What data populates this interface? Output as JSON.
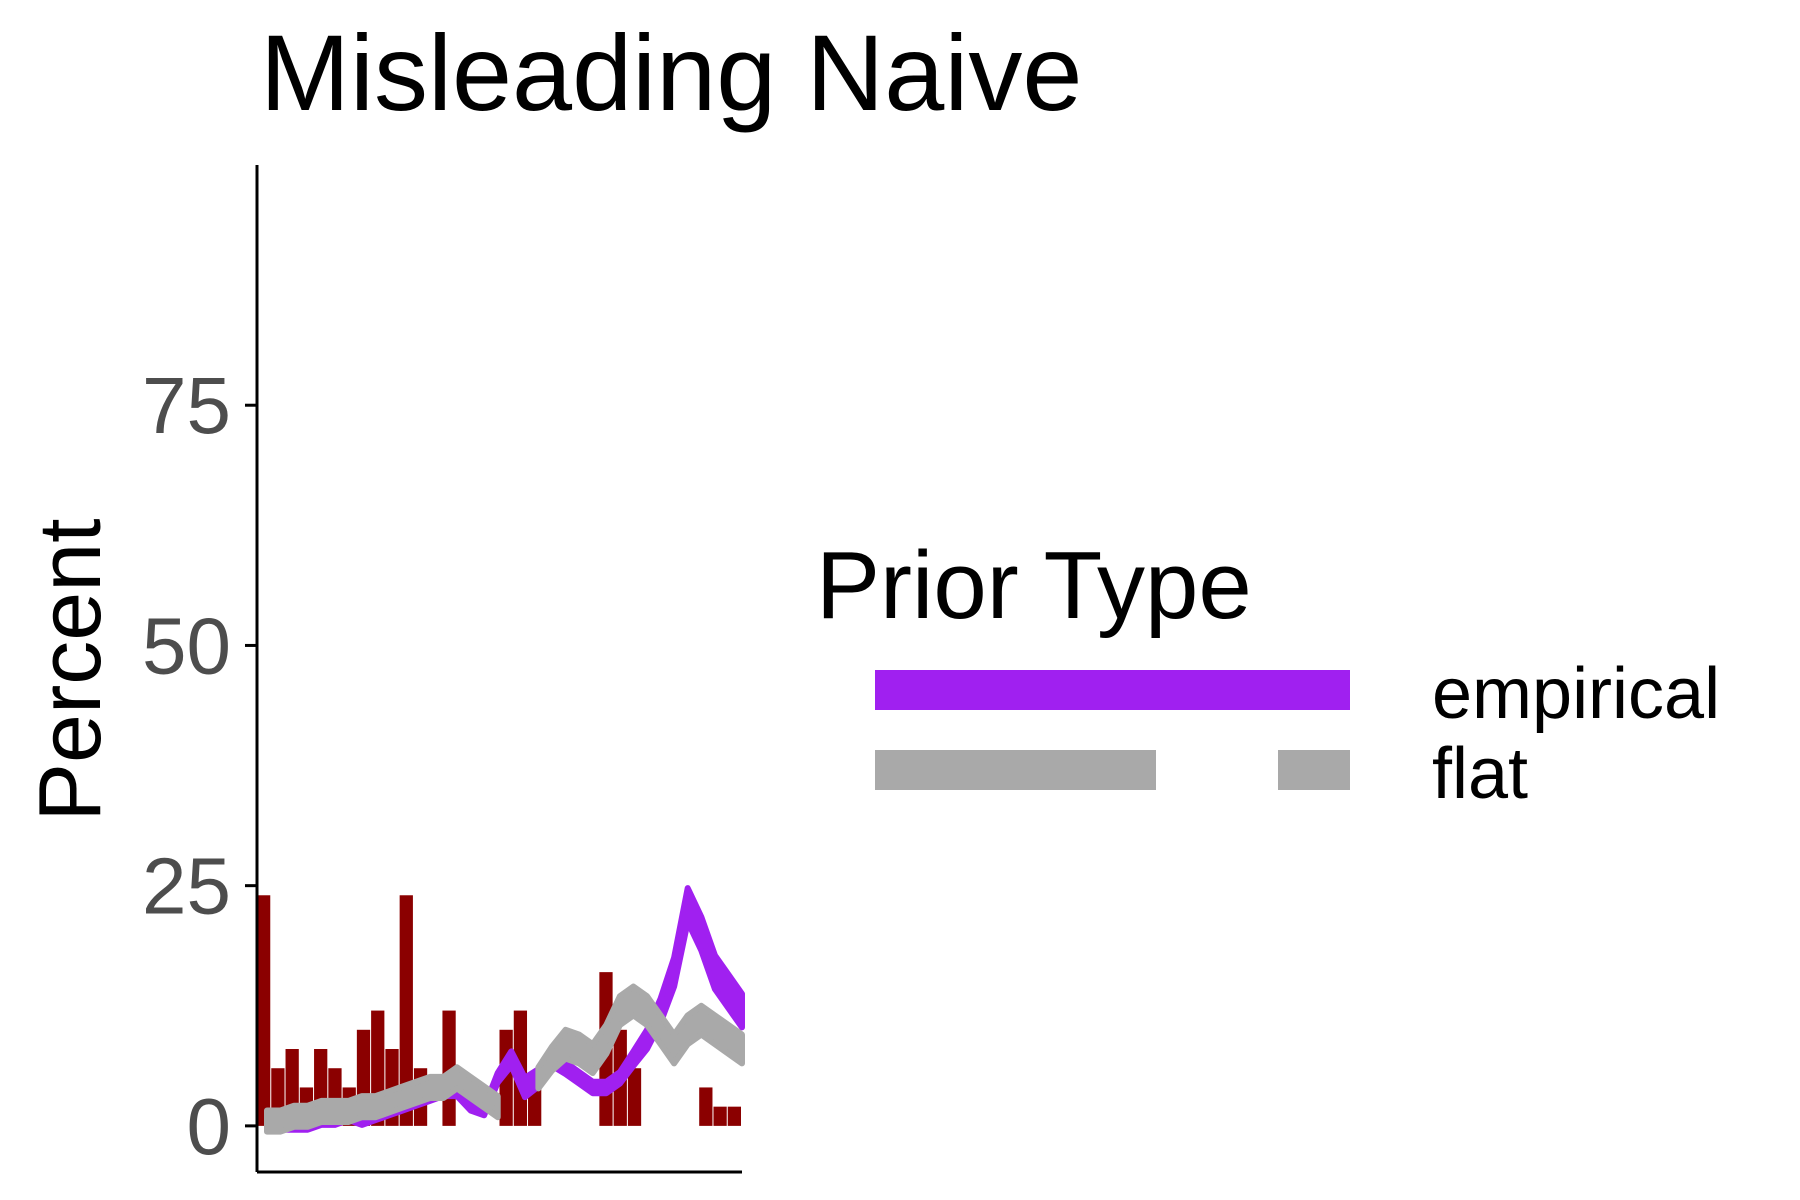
{
  "chart_data": {
    "type": "bar",
    "title": "Misleading Naive",
    "ylabel": "Percent",
    "xlabel": "",
    "ylim": [
      -4.8,
      100
    ],
    "yticks": [
      0,
      25,
      50,
      75
    ],
    "ytick_labels": [
      "0",
      "25",
      "50",
      "75"
    ],
    "grid": false,
    "legend": {
      "title": "Prior Type",
      "placement": "right",
      "entries": [
        "empirical",
        "flat"
      ]
    },
    "bar_color": "#8B0000",
    "bars": [
      24,
      6,
      8,
      4,
      8,
      6,
      4,
      10,
      12,
      8,
      24,
      6,
      0,
      12,
      0,
      0,
      0,
      10,
      12,
      4,
      0,
      0,
      0,
      0,
      16,
      10,
      6,
      0,
      0,
      0,
      0,
      4,
      2,
      2
    ],
    "series": [
      {
        "name": "empirical",
        "color": "#A020F0",
        "x": [
          0,
          2,
          4,
          6,
          8,
          10,
          12,
          14,
          16,
          18,
          20,
          22,
          24,
          26,
          28,
          30,
          32,
          34,
          36,
          38,
          40,
          42,
          44,
          46,
          48,
          50,
          52,
          54,
          56,
          58,
          60,
          62,
          64,
          66,
          68,
          70
        ],
        "y": [
          0,
          0,
          0,
          0,
          0.5,
          0.5,
          1,
          0.5,
          1,
          1.5,
          2,
          2.5,
          3,
          3.5,
          3.5,
          2,
          1.5,
          5,
          7,
          4,
          5,
          7,
          6,
          5,
          4,
          4,
          5,
          7,
          9,
          12,
          16,
          23,
          20,
          16,
          14,
          12
        ],
        "w": [
          0.8,
          0.8,
          0.8,
          0.8,
          0.8,
          0.8,
          0.8,
          0.8,
          0.8,
          0.8,
          0.8,
          0.8,
          0.8,
          0.8,
          0.8,
          0.8,
          0.8,
          1.0,
          1.5,
          2.0,
          1.8,
          1.5,
          1.2,
          1.2,
          1.2,
          1.2,
          1.2,
          1.5,
          2.0,
          2.5,
          3.0,
          3.5,
          3.5,
          3.5,
          3.5,
          3.5
        ]
      },
      {
        "name": "flat",
        "color": "#A9A9A9",
        "x": [
          0,
          2,
          4,
          6,
          8,
          10,
          12,
          14,
          16,
          18,
          20,
          22,
          24,
          26,
          28,
          30,
          32,
          34,
          36,
          38,
          40,
          42,
          44,
          46,
          48,
          50,
          52,
          54,
          56,
          58,
          60,
          62,
          64,
          66,
          68,
          70
        ],
        "y": [
          0.5,
          0.5,
          1,
          1,
          1.5,
          1.5,
          1.5,
          2,
          2,
          2.5,
          3,
          3.5,
          4,
          4,
          5,
          4,
          3,
          2,
          null,
          null,
          5,
          7,
          8.5,
          8,
          7,
          9,
          12,
          13,
          12,
          10,
          8,
          10,
          11,
          10,
          9,
          8
        ],
        "w": [
          2.2,
          2.2,
          2.2,
          2.2,
          2.2,
          2.2,
          2.2,
          2.2,
          2.2,
          2.2,
          2.2,
          2.2,
          2.2,
          2.2,
          2.2,
          2.2,
          2.2,
          2.2,
          2.2,
          2.2,
          2.2,
          2.5,
          3.0,
          3.0,
          3.0,
          3.0,
          3.0,
          3.0,
          3.0,
          3.0,
          3.0,
          3.0,
          3.0,
          3.0,
          3.0,
          3.0
        ]
      }
    ]
  }
}
